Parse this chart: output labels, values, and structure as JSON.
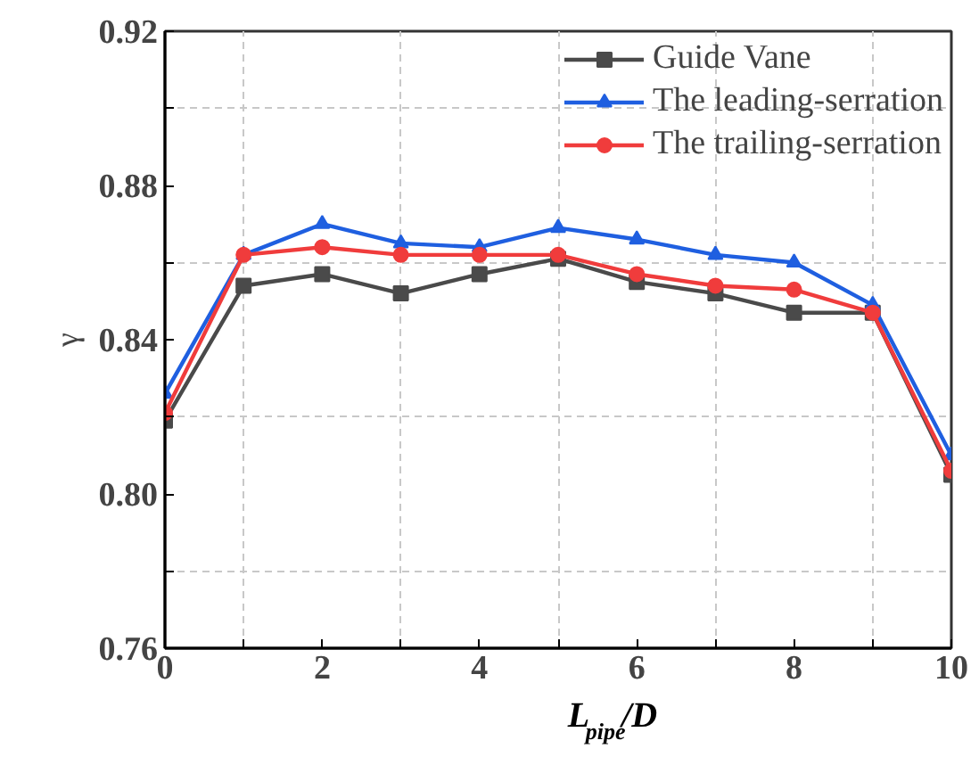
{
  "chart_data": {
    "type": "line",
    "xlabel": "L$_{pipe}$/D",
    "ylabel": "γ",
    "x": [
      0,
      1,
      2,
      3,
      4,
      5,
      6,
      7,
      8,
      9,
      10
    ],
    "series": [
      {
        "name": "Guide Vane",
        "color": "#4a4a4a",
        "marker": "square",
        "values": [
          0.819,
          0.854,
          0.857,
          0.852,
          0.857,
          0.861,
          0.855,
          0.852,
          0.847,
          0.847,
          0.805
        ]
      },
      {
        "name": "The leading-serration",
        "color": "#1f5fe0",
        "marker": "triangle",
        "values": [
          0.826,
          0.862,
          0.87,
          0.865,
          0.864,
          0.869,
          0.866,
          0.862,
          0.86,
          0.849,
          0.81
        ]
      },
      {
        "name": "The trailing-serration",
        "color": "#f03c3c",
        "marker": "circle",
        "values": [
          0.821,
          0.862,
          0.864,
          0.862,
          0.862,
          0.862,
          0.857,
          0.854,
          0.853,
          0.847,
          0.806
        ]
      }
    ],
    "xlim": [
      0,
      10
    ],
    "xticks": [
      0,
      {
        "value": 1,
        "label": null
      },
      2,
      {
        "value": 3,
        "label": null
      },
      4,
      {
        "value": 5,
        "label": null
      },
      6,
      {
        "value": 7,
        "label": null
      },
      8,
      {
        "value": 9,
        "label": null
      },
      10
    ],
    "ylim": [
      0.76,
      0.92
    ],
    "yticks": [
      {
        "value": 0.76,
        "label": "0.76"
      },
      {
        "value": 0.78,
        "label": null
      },
      {
        "value": 0.8,
        "label": "0.80"
      },
      {
        "value": 0.82,
        "label": null
      },
      {
        "value": 0.84,
        "label": "0.84"
      },
      {
        "value": 0.86,
        "label": null
      },
      {
        "value": 0.88,
        "label": "0.88"
      },
      {
        "value": 0.9,
        "label": null
      },
      {
        "value": 0.92,
        "label": "0.92"
      }
    ],
    "grid": "minor",
    "legend": "top right",
    "line_style": "solid"
  }
}
